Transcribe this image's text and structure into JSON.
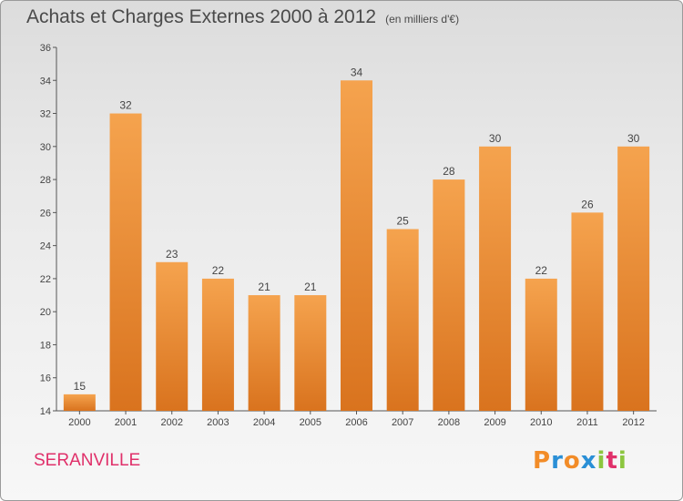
{
  "header": {
    "title": "Achats et Charges Externes 2000 à 2012",
    "subtitle": "(en milliers d'€)"
  },
  "footer": {
    "commune": "SERANVILLE",
    "brand": "Proxiti",
    "brand_colors": [
      "#f28c28",
      "#2a8fd6",
      "#f28c28",
      "#2a8fd6",
      "#8cc63f",
      "#e0306a",
      "#8cc63f"
    ]
  },
  "chart_data": {
    "type": "bar",
    "title": "Achats et Charges Externes 2000 à 2012",
    "subtitle": "(en milliers d'€)",
    "categories": [
      "2000",
      "2001",
      "2002",
      "2003",
      "2004",
      "2005",
      "2006",
      "2007",
      "2008",
      "2009",
      "2010",
      "2011",
      "2012"
    ],
    "values": [
      15,
      32,
      23,
      22,
      21,
      21,
      34,
      25,
      28,
      30,
      22,
      26,
      30
    ],
    "ylim": [
      14,
      36
    ],
    "yticks": [
      14,
      16,
      18,
      20,
      22,
      24,
      26,
      28,
      30,
      32,
      34,
      36
    ],
    "xlabel": "",
    "ylabel": "",
    "bar_color_top": "#f5a34e",
    "bar_color_bottom": "#d9731e",
    "grid": false
  }
}
